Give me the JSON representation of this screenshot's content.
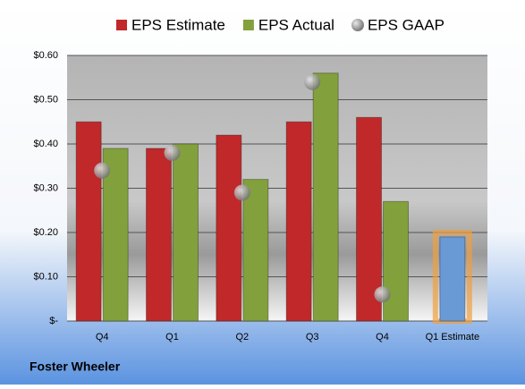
{
  "chart_data": {
    "type": "bar",
    "title": "Foster Wheeler",
    "categories": [
      "Q4",
      "Q1",
      "Q2",
      "Q3",
      "Q4",
      "Q1 Estimate"
    ],
    "series": [
      {
        "name": "EPS Estimate",
        "color": "#c0282a",
        "values": [
          0.45,
          0.39,
          0.42,
          0.45,
          0.46,
          null
        ]
      },
      {
        "name": "EPS Actual",
        "color": "#82a03c",
        "values": [
          0.39,
          0.4,
          0.32,
          0.56,
          0.27,
          null
        ]
      },
      {
        "name": "EPS GAAP",
        "color": "#a0a0a0",
        "kind": "marker",
        "values": [
          0.34,
          0.38,
          0.29,
          0.54,
          0.06,
          null
        ]
      },
      {
        "color": "#6a9ad6",
        "values": [
          null,
          null,
          null,
          null,
          null,
          0.19
        ]
      }
    ],
    "ylim": [
      0,
      0.6
    ],
    "yticks": [
      {
        "value": 0,
        "label": "$-"
      },
      {
        "value": 0.1,
        "label": "$0.10"
      },
      {
        "value": 0.2,
        "label": "$0.20"
      },
      {
        "value": 0.3,
        "label": "$0.30"
      },
      {
        "value": 0.4,
        "label": "$0.40"
      },
      {
        "value": 0.5,
        "label": "$0.50"
      },
      {
        "value": 0.6,
        "label": "$0.60"
      }
    ],
    "grid": true,
    "legend": "top"
  }
}
